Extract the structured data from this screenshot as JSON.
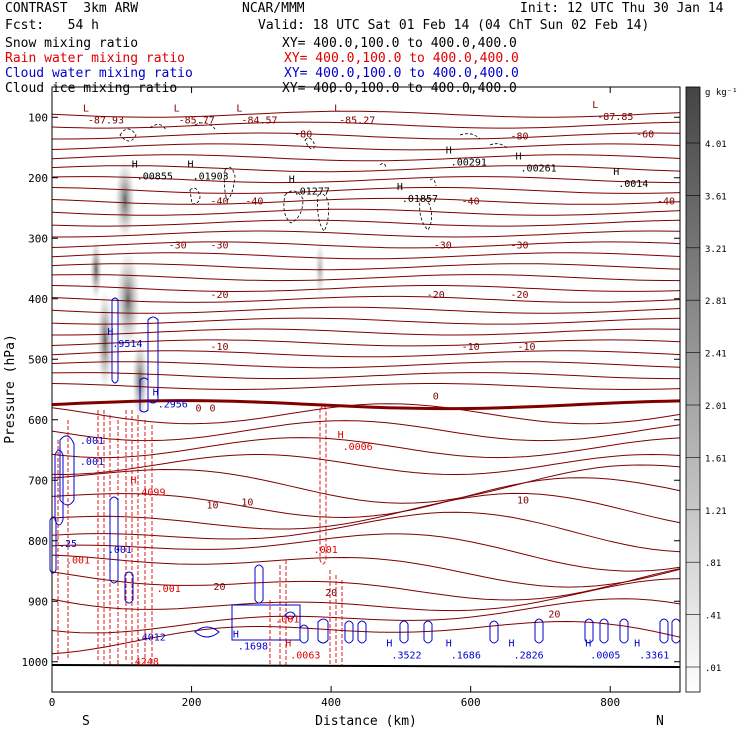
{
  "header": {
    "model": "CONTRAST  3km ARW",
    "org": "NCAR/MMM",
    "init": "Init: 12 UTC Thu 30 Jan 14",
    "fcst": "Fcst:   54 h",
    "valid": "Valid: 18 UTC Sat 01 Feb 14 (04 ChT Sun 02 Feb 14)"
  },
  "fields": [
    {
      "label": "Snow mixing ratio",
      "xy": "XY= 400.0,100.0 to 400.0,400.0",
      "color": "#000000"
    },
    {
      "label": "Rain water mixing ratio",
      "xy": "XY= 400.0,100.0 to 400.0,400.0",
      "color": "#e00000"
    },
    {
      "label": "Cloud water mixing ratio",
      "xy": "XY= 400.0,100.0 to 400.0,400.0",
      "color": "#0000cc"
    },
    {
      "label": "Cloud ice mixing ratio",
      "xy": "XY= 400.0,100.0 to 400.0,400.0",
      "color": "#000000"
    }
  ],
  "colorbar": {
    "unit": "g kg⁻¹",
    "labels": [
      "4.01",
      "3.61",
      "3.21",
      "2.81",
      "2.41",
      "2.01",
      "1.61",
      "1.21",
      ".81",
      ".41",
      ".01"
    ],
    "color_bottom": "#ffffff",
    "color_top": "#444444"
  },
  "chart_data": {
    "type": "contour",
    "xlabel": "Distance (km)",
    "ylabel": "Pressure (hPa)",
    "xlim": [
      0,
      900
    ],
    "ylim": [
      1050,
      50
    ],
    "x_ticks": [
      0,
      200,
      400,
      600,
      800
    ],
    "y_ticks": [
      100,
      200,
      300,
      400,
      500,
      600,
      700,
      800,
      900,
      1000
    ],
    "x_end_labels": {
      "left": "S",
      "right": "N"
    },
    "temperature_contours": [
      {
        "value": "-80",
        "x": 360,
        "p": 127
      },
      {
        "value": "-80",
        "x": 670,
        "p": 130
      },
      {
        "value": "-60",
        "x": 850,
        "p": 127
      },
      {
        "value": "-40",
        "x": 240,
        "p": 238
      },
      {
        "value": "-40",
        "x": 290,
        "p": 238
      },
      {
        "value": "-40",
        "x": 600,
        "p": 238
      },
      {
        "value": "-40",
        "x": 880,
        "p": 238
      },
      {
        "value": "-30",
        "x": 180,
        "p": 310
      },
      {
        "value": "-30",
        "x": 240,
        "p": 310
      },
      {
        "value": "-30",
        "x": 560,
        "p": 310
      },
      {
        "value": "-30",
        "x": 670,
        "p": 310
      },
      {
        "value": "-20",
        "x": 240,
        "p": 392
      },
      {
        "value": "-20",
        "x": 550,
        "p": 392
      },
      {
        "value": "-20",
        "x": 670,
        "p": 392
      },
      {
        "value": "-10",
        "x": 240,
        "p": 478
      },
      {
        "value": "-10",
        "x": 600,
        "p": 478
      },
      {
        "value": "-10",
        "x": 680,
        "p": 478
      },
      {
        "value": "0",
        "x": 210,
        "p": 580
      },
      {
        "value": "0",
        "x": 230,
        "p": 580
      },
      {
        "value": "0",
        "x": 550,
        "p": 560
      },
      {
        "value": "10",
        "x": 230,
        "p": 740
      },
      {
        "value": "10",
        "x": 280,
        "p": 735
      },
      {
        "value": "10",
        "x": 675,
        "p": 732
      },
      {
        "value": "20",
        "x": 240,
        "p": 875
      },
      {
        "value": "20",
        "x": 400,
        "p": 885
      },
      {
        "value": "20",
        "x": 720,
        "p": 920
      }
    ],
    "highs_lows": [
      {
        "type": "L",
        "value": "-87.93",
        "x": 40,
        "p": 100,
        "color": "#800000"
      },
      {
        "type": "L",
        "value": "-85.77",
        "x": 170,
        "p": 100,
        "color": "#800000"
      },
      {
        "type": "L",
        "value": "-84.57",
        "x": 260,
        "p": 100,
        "color": "#800000"
      },
      {
        "type": "L",
        "value": "-85.27",
        "x": 400,
        "p": 100,
        "color": "#800000"
      },
      {
        "type": "L",
        "value": "-87.85",
        "x": 770,
        "p": 95,
        "color": "#800000"
      },
      {
        "type": "H",
        "value": ".00855",
        "x": 110,
        "p": 193,
        "color": "#000000"
      },
      {
        "type": "H",
        "value": ".01903",
        "x": 190,
        "p": 193,
        "color": "#000000"
      },
      {
        "type": "H",
        "value": ".01277",
        "x": 335,
        "p": 218,
        "color": "#000000"
      },
      {
        "type": "H",
        "value": ".01857",
        "x": 490,
        "p": 230,
        "color": "#000000"
      },
      {
        "type": "H",
        "value": ".00291",
        "x": 560,
        "p": 170,
        "color": "#000000"
      },
      {
        "type": "H",
        "value": ".00261",
        "x": 660,
        "p": 180,
        "color": "#000000"
      },
      {
        "type": "H",
        "value": ".0014",
        "x": 800,
        "p": 205,
        "color": "#000000"
      },
      {
        "type": "H",
        "value": ".9514",
        "x": 75,
        "p": 470,
        "color": "#0000cc"
      },
      {
        "type": "H",
        "value": ".2956",
        "x": 140,
        "p": 570,
        "color": "#0000cc"
      },
      {
        "type": "H",
        "value": ".0006",
        "x": 405,
        "p": 640,
        "color": "#e00000"
      },
      {
        "type": "H",
        "value": ".4099",
        "x": 108,
        "p": 715,
        "color": "#e00000"
      },
      {
        "type": "H",
        "value": ".1698",
        "x": 255,
        "p": 970,
        "color": "#0000cc"
      },
      {
        "type": "H",
        "value": ".0063",
        "x": 330,
        "p": 985,
        "color": "#e00000"
      },
      {
        "type": "H",
        "value": ".3522",
        "x": 475,
        "p": 985,
        "color": "#0000cc"
      },
      {
        "type": "H",
        "value": ".1686",
        "x": 560,
        "p": 985,
        "color": "#0000cc"
      },
      {
        "type": "H",
        "value": ".2826",
        "x": 650,
        "p": 985,
        "color": "#0000cc"
      },
      {
        "type": "H",
        "value": ".0005",
        "x": 760,
        "p": 985,
        "color": "#0000cc"
      },
      {
        "type": "H",
        "value": ".3361",
        "x": 830,
        "p": 985,
        "color": "#0000cc"
      }
    ],
    "small_labels": [
      {
        "text": ".001",
        "x": 40,
        "p": 640,
        "color": "#0000cc"
      },
      {
        "text": ".001",
        "x": 40,
        "p": 675,
        "color": "#0000cc"
      },
      {
        "text": ".25",
        "x": 10,
        "p": 810,
        "color": "#0000cc"
      },
      {
        "text": ".001",
        "x": 20,
        "p": 838,
        "color": "#e00000"
      },
      {
        "text": ".001",
        "x": 80,
        "p": 820,
        "color": "#0000cc"
      },
      {
        "text": ".001",
        "x": 150,
        "p": 885,
        "color": "#e00000"
      },
      {
        "text": ".001",
        "x": 375,
        "p": 820,
        "color": "#e00000"
      },
      {
        "text": ".001",
        "x": 320,
        "p": 935,
        "color": "#e00000"
      },
      {
        "text": ".4012",
        "x": 120,
        "p": 965,
        "color": "#0000cc"
      },
      {
        "text": ".4248",
        "x": 110,
        "p": 1005,
        "color": "#e00000"
      }
    ]
  }
}
